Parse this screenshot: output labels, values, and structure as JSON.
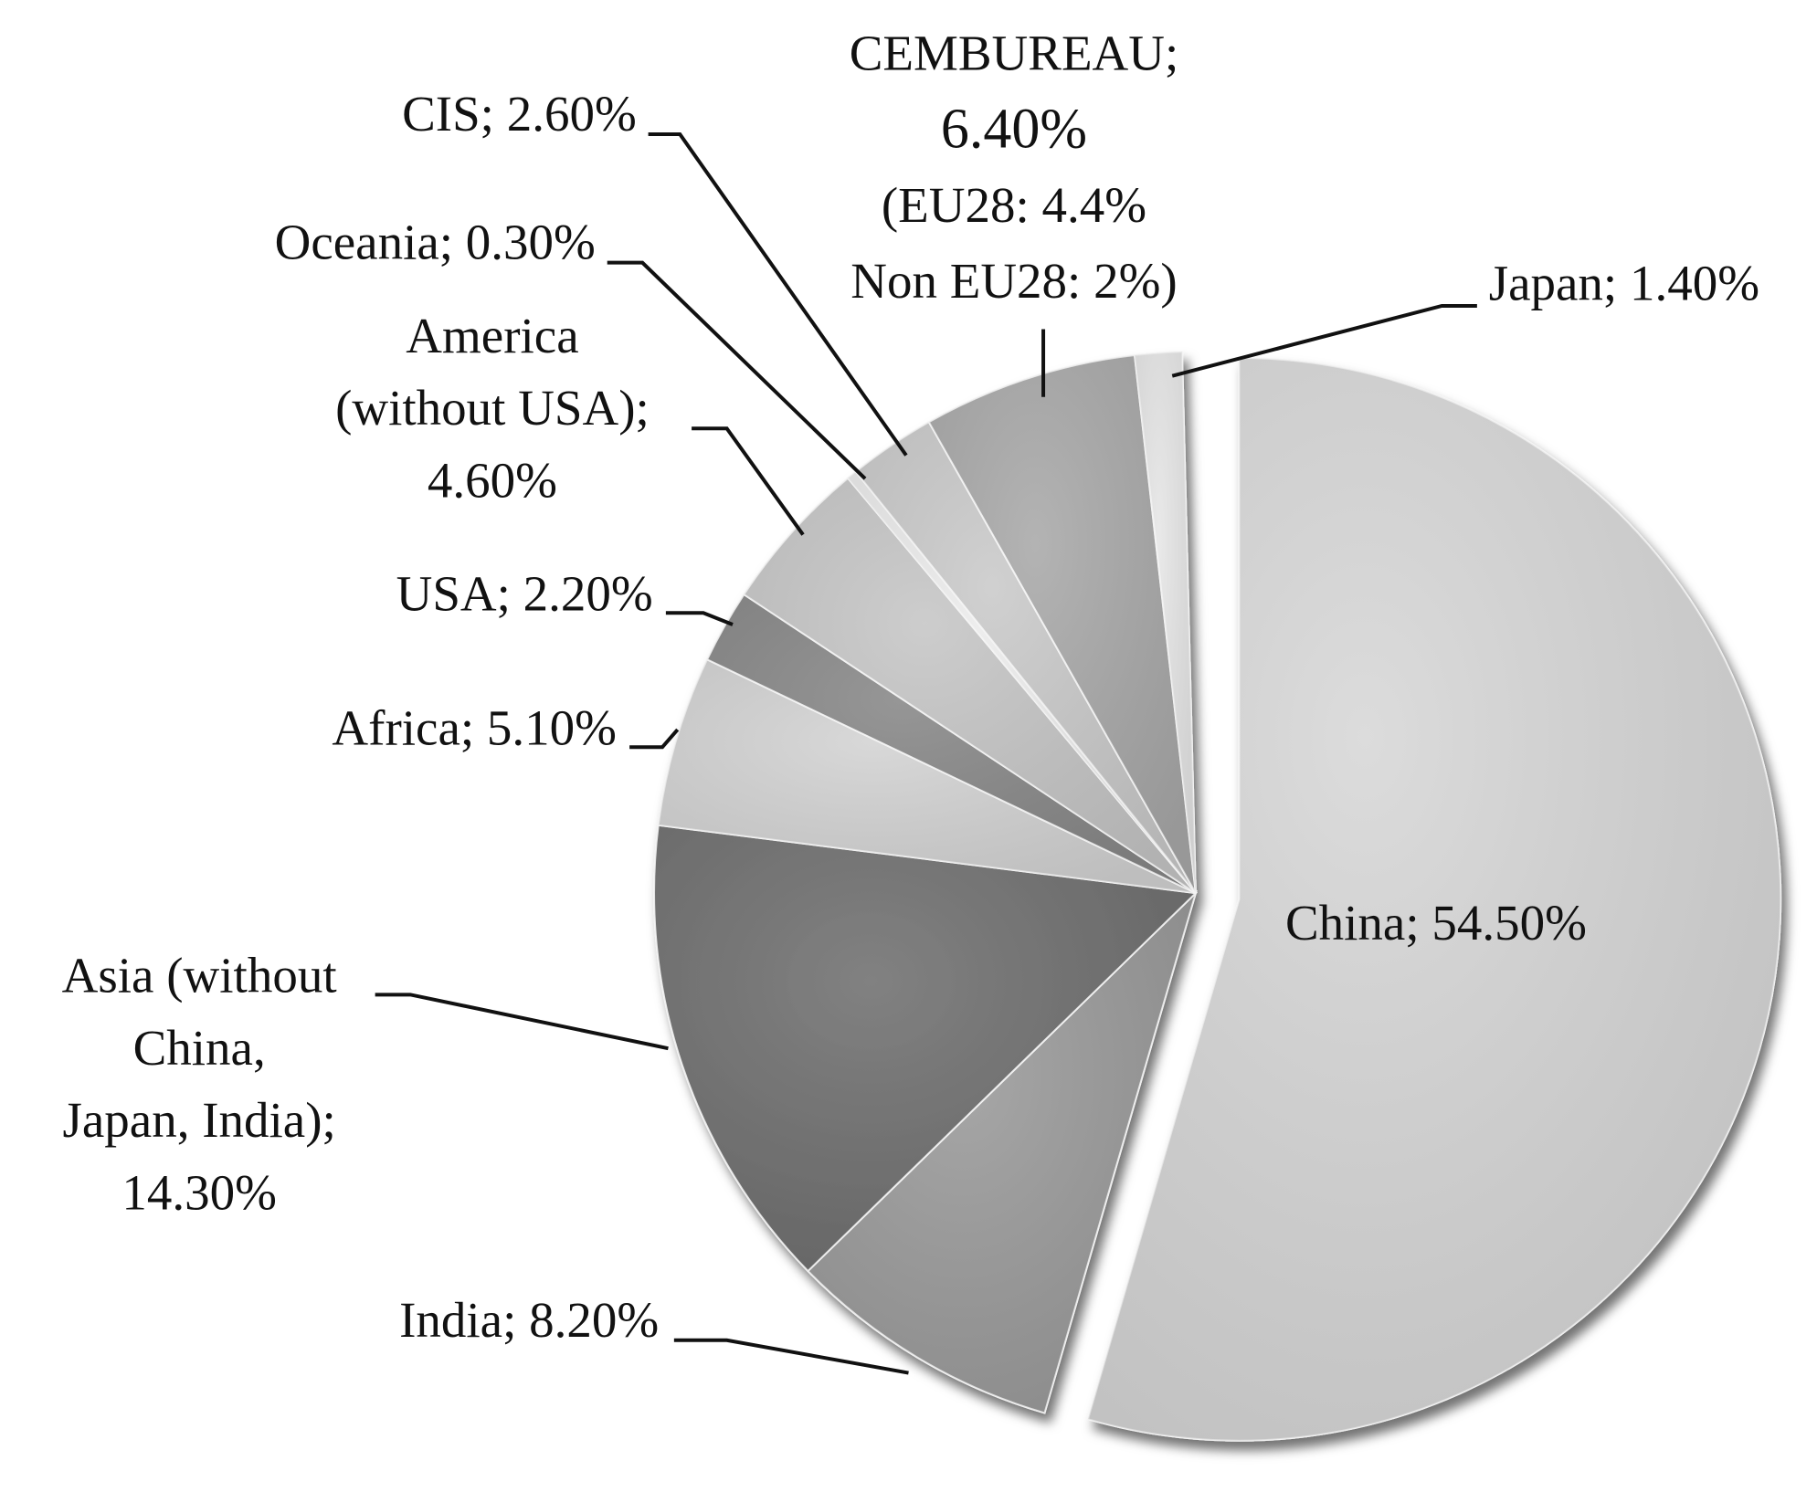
{
  "chart_data": {
    "type": "pie",
    "categories": [
      "China",
      "India",
      "Asia (without China, Japan, India)",
      "Africa",
      "USA",
      "America (without USA)",
      "Oceania",
      "CIS",
      "CEMBUREAU",
      "Japan"
    ],
    "values": [
      54.5,
      8.2,
      14.3,
      5.1,
      2.2,
      4.6,
      0.3,
      2.6,
      6.4,
      1.4
    ],
    "labels": [
      [
        "China; 54.50%"
      ],
      [
        "India; 8.20%"
      ],
      [
        "Asia (without",
        "China,",
        "Japan, India);",
        "14.30%"
      ],
      [
        "Africa; 5.10%"
      ],
      [
        "USA; 2.20%"
      ],
      [
        "America",
        "(without USA);",
        "4.60%"
      ],
      [
        "Oceania; 0.30%"
      ],
      [
        "CIS; 2.60%"
      ],
      [
        "CEMBUREAU;",
        "6.40%",
        "(EU28: 4.4%",
        "Non EU28: 2%)"
      ],
      [
        "Japan; 1.40%"
      ]
    ],
    "colors": [
      "#d7d7d7",
      "#9b9b9b",
      "#707070",
      "#d3d3d3",
      "#888888",
      "#c6c6c6",
      "#ececec",
      "#cacaca",
      "#a9a9a9",
      "#e6e6e6"
    ],
    "exploded": [
      true,
      false,
      false,
      false,
      false,
      false,
      false,
      false,
      false,
      false
    ]
  }
}
